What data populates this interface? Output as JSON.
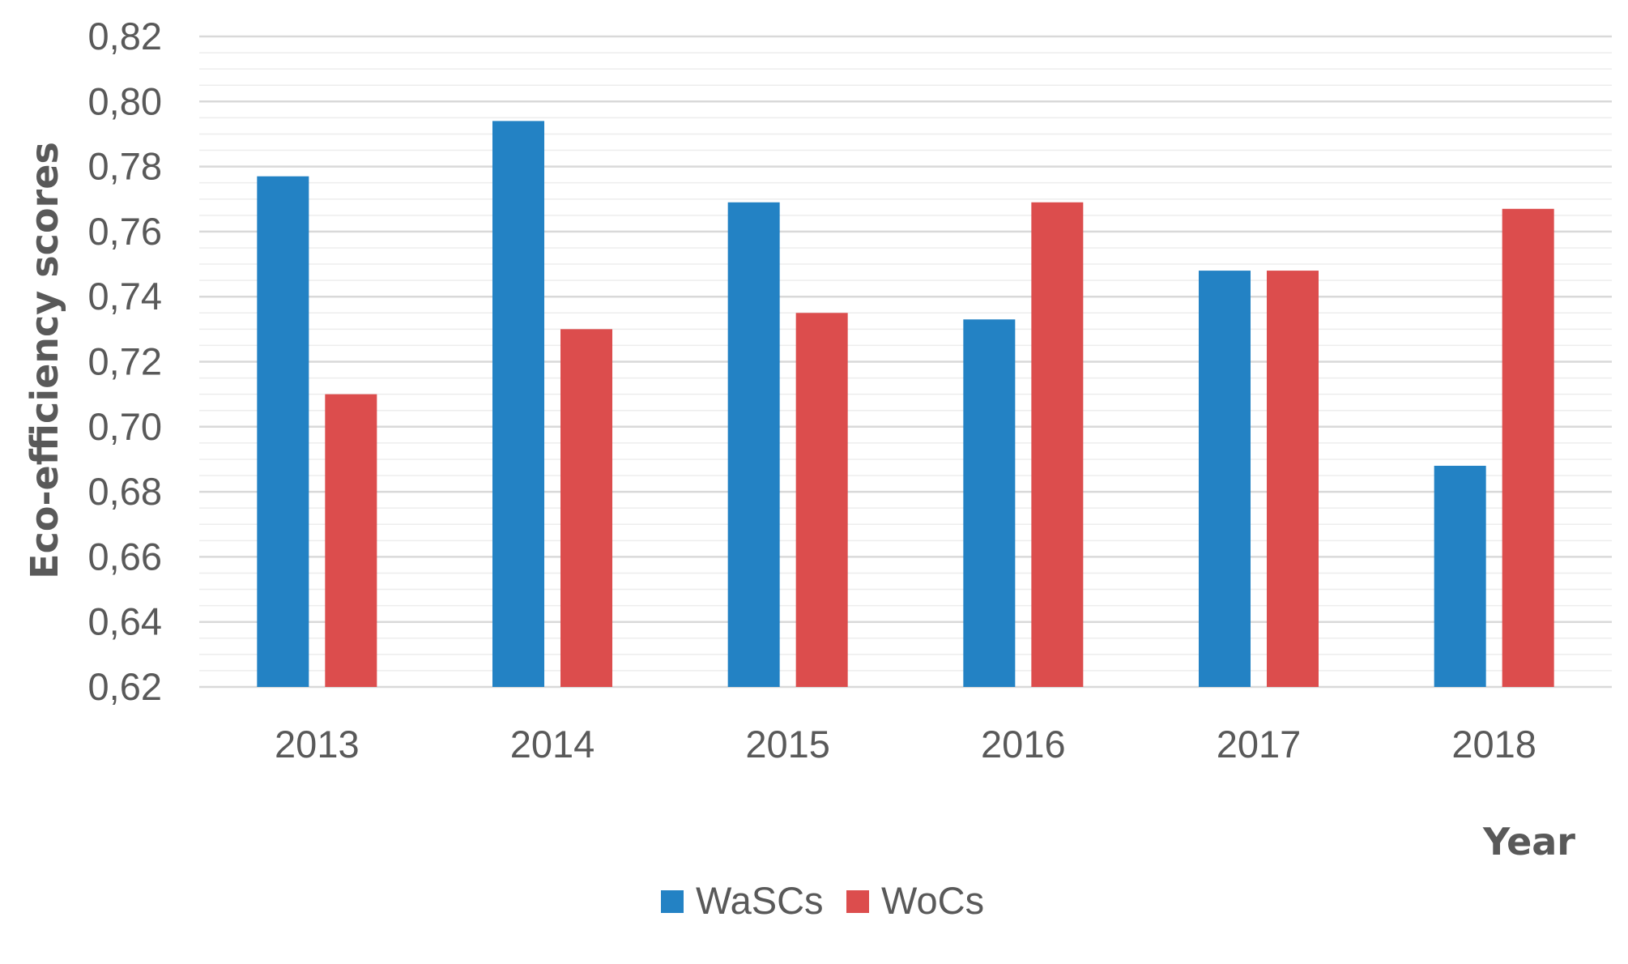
{
  "chart_data": {
    "type": "bar",
    "title": "",
    "xlabel": "Year",
    "ylabel": "Eco-efficiency scores",
    "categories": [
      "2013",
      "2014",
      "2015",
      "2016",
      "2017",
      "2018"
    ],
    "series": [
      {
        "name": "WaSCs",
        "color": "#2382c4",
        "values": [
          0.777,
          0.794,
          0.769,
          0.733,
          0.748,
          0.688
        ]
      },
      {
        "name": "WoCs",
        "color": "#dc4d4d",
        "values": [
          0.71,
          0.73,
          0.735,
          0.769,
          0.748,
          0.767
        ]
      }
    ],
    "ylim": [
      0.62,
      0.82
    ],
    "yticks": [
      "0,62",
      "0,64",
      "0,66",
      "0,68",
      "0,70",
      "0,72",
      "0,74",
      "0,76",
      "0,78",
      "0,80",
      "0,82"
    ],
    "major_step": 0.02,
    "minor_step": 0.005,
    "grid": true,
    "legend_position": "bottom-center"
  }
}
